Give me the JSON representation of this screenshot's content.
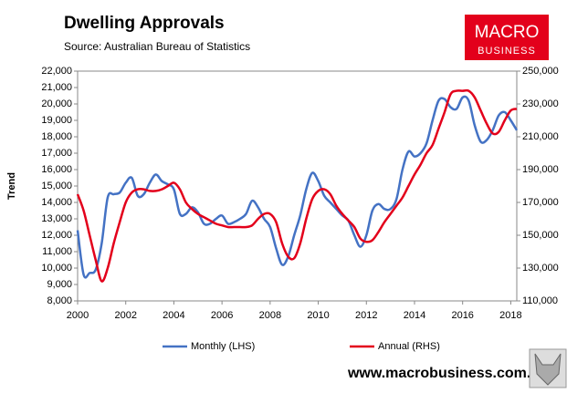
{
  "chart_data": {
    "type": "line",
    "title": "Dwelling Approvals",
    "subtitle": "Source: Australian Bureau of Statistics",
    "ylabel": "Trend",
    "x": [
      2000,
      2000.25,
      2000.5,
      2000.75,
      2001,
      2001.25,
      2001.5,
      2001.75,
      2002,
      2002.25,
      2002.5,
      2002.75,
      2003,
      2003.25,
      2003.5,
      2003.75,
      2004,
      2004.25,
      2004.5,
      2004.75,
      2005,
      2005.25,
      2005.5,
      2005.75,
      2006,
      2006.25,
      2006.5,
      2006.75,
      2007,
      2007.25,
      2007.5,
      2007.75,
      2008,
      2008.25,
      2008.5,
      2008.75,
      2009,
      2009.25,
      2009.5,
      2009.75,
      2010,
      2010.25,
      2010.5,
      2010.75,
      2011,
      2011.25,
      2011.5,
      2011.75,
      2012,
      2012.25,
      2012.5,
      2012.75,
      2013,
      2013.25,
      2013.5,
      2013.75,
      2014,
      2014.25,
      2014.5,
      2014.75,
      2015,
      2015.25,
      2015.5,
      2015.75,
      2016,
      2016.25,
      2016.5,
      2016.75,
      2017,
      2017.25,
      2017.5,
      2017.75,
      2018,
      2018.25
    ],
    "series": [
      {
        "name": "Monthly (LHS)",
        "color": "#4472c4",
        "axis": "y",
        "values": [
          12300,
          9600,
          9700,
          9900,
          11500,
          14300,
          14500,
          14600,
          15200,
          15500,
          14400,
          14500,
          15200,
          15700,
          15300,
          15100,
          14800,
          13300,
          13300,
          13700,
          13400,
          12700,
          12700,
          13000,
          13200,
          12700,
          12800,
          13000,
          13300,
          14100,
          13700,
          13000,
          12500,
          11200,
          10200,
          10700,
          12000,
          13200,
          14800,
          15800,
          15300,
          14400,
          14000,
          13600,
          13200,
          12900,
          12000,
          11300,
          12000,
          13500,
          13900,
          13600,
          13600,
          14200,
          16000,
          17100,
          16800,
          17000,
          17600,
          19000,
          20200,
          20300,
          19800,
          19700,
          20400,
          20200,
          18700,
          17700,
          17800,
          18400,
          19300,
          19500,
          19000,
          18400
        ]
      },
      {
        "name": "Annual (RHS)",
        "color": "#e3001b",
        "axis": "y2",
        "values": [
          175000,
          165000,
          150000,
          135000,
          122000,
          130000,
          145000,
          158000,
          170000,
          176000,
          178000,
          178000,
          177000,
          177000,
          178000,
          180000,
          182000,
          178000,
          170000,
          166000,
          163000,
          161000,
          159000,
          157000,
          156000,
          155000,
          155000,
          155000,
          155000,
          156000,
          160000,
          163000,
          163000,
          158000,
          145000,
          137000,
          136000,
          145000,
          160000,
          172000,
          177000,
          178000,
          175000,
          168000,
          163000,
          159000,
          155000,
          148000,
          146000,
          147000,
          152000,
          158000,
          163000,
          168000,
          173000,
          180000,
          187000,
          193000,
          200000,
          205000,
          215000,
          225000,
          236000,
          238000,
          238000,
          238000,
          234000,
          226000,
          218000,
          212000,
          213000,
          220000,
          226000,
          227000
        ]
      }
    ],
    "xlim": [
      2000,
      2018.25
    ],
    "xticks": [
      2000,
      2002,
      2004,
      2006,
      2008,
      2010,
      2012,
      2014,
      2016,
      2018
    ],
    "ylim": [
      8000,
      22000
    ],
    "yticks": [
      {
        "value": 8000,
        "label": "8,000"
      },
      {
        "value": 9000,
        "label": "9,000"
      },
      {
        "value": 10000,
        "label": "10,000"
      },
      {
        "value": 11000,
        "label": "11,000"
      },
      {
        "value": 12000,
        "label": "12,000"
      },
      {
        "value": 13000,
        "label": "13,000"
      },
      {
        "value": 14000,
        "label": "14,000"
      },
      {
        "value": 15000,
        "label": "15,000"
      },
      {
        "value": 16000,
        "label": "16,000"
      },
      {
        "value": 17000,
        "label": "17,000"
      },
      {
        "value": 18000,
        "label": "18,000"
      },
      {
        "value": 19000,
        "label": "19,000"
      },
      {
        "value": 20000,
        "label": "20,000"
      },
      {
        "value": 21000,
        "label": "21,000"
      },
      {
        "value": 22000,
        "label": "22,000"
      }
    ],
    "y2lim": [
      110000,
      250000
    ],
    "y2ticks": [
      {
        "value": 110000,
        "label": "110,000"
      },
      {
        "value": 130000,
        "label": "130,000"
      },
      {
        "value": 150000,
        "label": "150,000"
      },
      {
        "value": 170000,
        "label": "170,000"
      },
      {
        "value": 190000,
        "label": "190,000"
      },
      {
        "value": 210000,
        "label": "210,000"
      },
      {
        "value": 230000,
        "label": "230,000"
      },
      {
        "value": 250000,
        "label": "250,000"
      }
    ],
    "grid": false,
    "legend": "bottom"
  },
  "logo": {
    "line1": "MACRO",
    "line2": "BUSINESS"
  },
  "footer": "www.macrobusiness.com.au"
}
